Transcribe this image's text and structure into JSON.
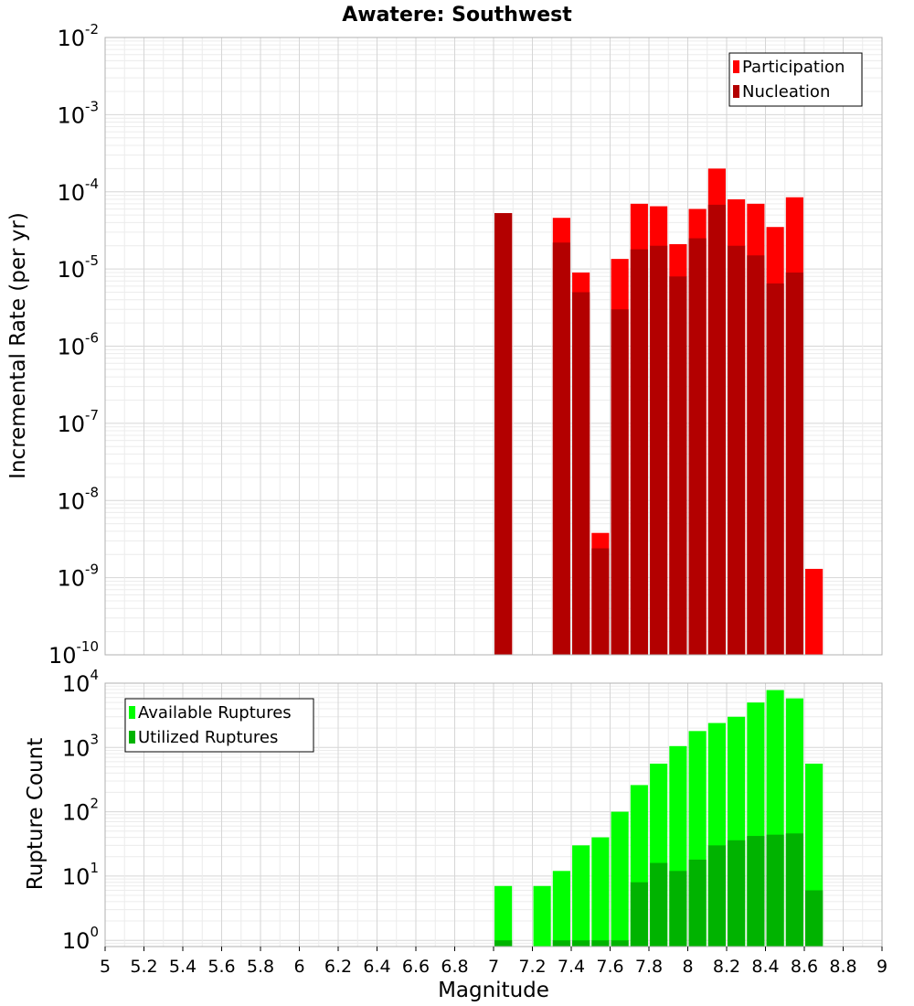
{
  "chart_data": [
    {
      "type": "bar",
      "scale": "log",
      "title": "Awatere: Southwest",
      "ylabel": "Incremental Rate (per yr)",
      "ylim": [
        1e-10,
        0.01
      ],
      "xlim": [
        5,
        9
      ],
      "y_ticks": [
        {
          "base": "10",
          "exp": "-10",
          "value": 1e-10
        },
        {
          "base": "10",
          "exp": "-9",
          "value": 1e-09
        },
        {
          "base": "10",
          "exp": "-8",
          "value": 1e-08
        },
        {
          "base": "10",
          "exp": "-7",
          "value": 1e-07
        },
        {
          "base": "10",
          "exp": "-6",
          "value": 1e-06
        },
        {
          "base": "10",
          "exp": "-5",
          "value": 1e-05
        },
        {
          "base": "10",
          "exp": "-4",
          "value": 0.0001
        },
        {
          "base": "10",
          "exp": "-3",
          "value": 0.001
        },
        {
          "base": "10",
          "exp": "-2",
          "value": 0.01
        }
      ],
      "grid": true,
      "legend_position": "top-right",
      "series": [
        {
          "name": "Participation",
          "color": "#ff0000",
          "x": [
            7.05,
            7.35,
            7.45,
            7.55,
            7.65,
            7.75,
            7.85,
            7.95,
            8.05,
            8.15,
            8.25,
            8.35,
            8.45,
            8.55,
            8.65
          ],
          "values": [
            5.3e-05,
            4.6e-05,
            9e-06,
            3.8e-09,
            1.35e-05,
            7e-05,
            6.5e-05,
            2.1e-05,
            6e-05,
            0.0002,
            8e-05,
            7e-05,
            3.5e-05,
            8.5e-05,
            1.3e-09
          ]
        },
        {
          "name": "Nucleation",
          "color": "#b30000",
          "x": [
            7.05,
            7.35,
            7.45,
            7.55,
            7.65,
            7.75,
            7.85,
            7.95,
            8.05,
            8.15,
            8.25,
            8.35,
            8.45,
            8.55
          ],
          "values": [
            5.3e-05,
            2.2e-05,
            5e-06,
            2.4e-09,
            3e-06,
            1.8e-05,
            2e-05,
            8e-06,
            2.5e-05,
            6.8e-05,
            2e-05,
            1.5e-05,
            6.5e-06,
            9e-06
          ]
        }
      ]
    },
    {
      "type": "bar",
      "scale": "log",
      "ylabel": "Rupture Count",
      "xlabel": "Magnitude",
      "ylim": [
        0.8,
        10000
      ],
      "xlim": [
        5,
        9
      ],
      "x_ticks": [
        "5",
        "5.2",
        "5.4",
        "5.6",
        "5.8",
        "6",
        "6.2",
        "6.4",
        "6.6",
        "6.8",
        "7",
        "7.2",
        "7.4",
        "7.6",
        "7.8",
        "8",
        "8.2",
        "8.4",
        "8.6",
        "8.8",
        "9"
      ],
      "y_ticks": [
        {
          "base": "10",
          "exp": "0",
          "value": 1
        },
        {
          "base": "10",
          "exp": "1",
          "value": 10
        },
        {
          "base": "10",
          "exp": "2",
          "value": 100
        },
        {
          "base": "10",
          "exp": "3",
          "value": 1000
        },
        {
          "base": "10",
          "exp": "4",
          "value": 10000
        }
      ],
      "grid": true,
      "legend_position": "top-left",
      "series": [
        {
          "name": "Available Ruptures",
          "color": "#00ff00",
          "x": [
            7.05,
            7.25,
            7.35,
            7.45,
            7.55,
            7.65,
            7.75,
            7.85,
            7.95,
            8.05,
            8.15,
            8.25,
            8.35,
            8.45,
            8.55,
            8.65
          ],
          "values": [
            7,
            7,
            12,
            30,
            40,
            100,
            260,
            560,
            1050,
            1800,
            2400,
            3000,
            5000,
            7800,
            5800,
            560
          ]
        },
        {
          "name": "Utilized Ruptures",
          "color": "#00b300",
          "x": [
            7.05,
            7.35,
            7.45,
            7.55,
            7.65,
            7.75,
            7.85,
            7.95,
            8.05,
            8.15,
            8.25,
            8.35,
            8.45,
            8.55,
            8.65
          ],
          "values": [
            1,
            1,
            1,
            1,
            1,
            8,
            16,
            12,
            18,
            30,
            36,
            42,
            44,
            46,
            6
          ]
        }
      ]
    }
  ]
}
